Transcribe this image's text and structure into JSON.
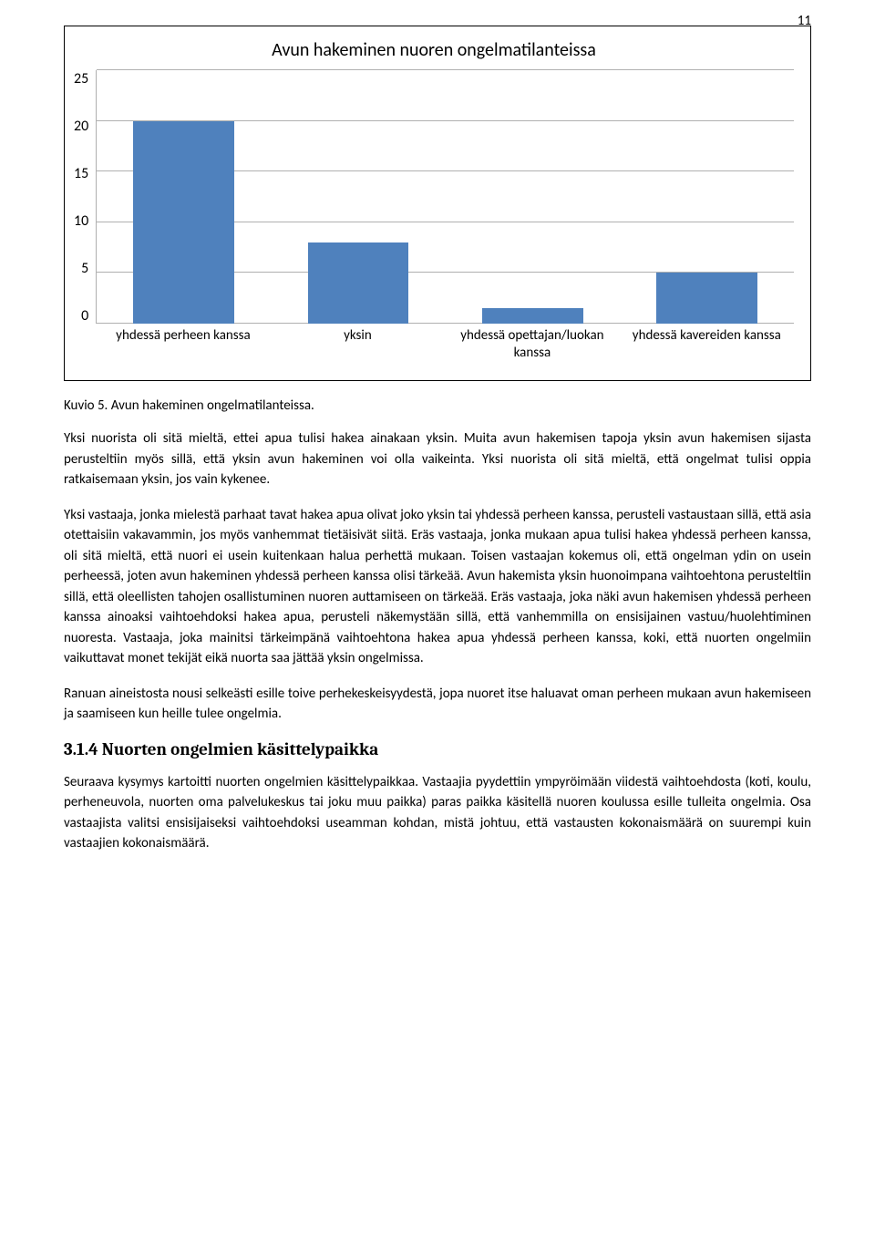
{
  "page_number": "11",
  "chart": {
    "type": "bar",
    "title": "Avun hakeminen nuoren ongelmatilanteissa",
    "yticks": [
      "25",
      "20",
      "15",
      "10",
      "5",
      "0"
    ],
    "ymax": 25,
    "categories": [
      "yhdessä perheen kanssa",
      "yksin",
      "yhdessä opettajan/luokan kanssa",
      "yhdessä kavereiden kanssa"
    ],
    "values": [
      20,
      8,
      1.5,
      5
    ],
    "bar_color": "#4f81bd",
    "grid_color": "#b0b0b0",
    "background_color": "#ffffff"
  },
  "caption": "Kuvio 5. Avun hakeminen ongelmatilanteissa.",
  "para1": "Yksi nuorista oli sitä mieltä, ettei apua tulisi hakea ainakaan yksin. Muita avun hakemisen tapoja yksin avun hakemisen sijasta perusteltiin myös sillä, että yksin avun hakeminen voi olla vaikeinta. Yksi nuorista oli sitä mieltä, että ongelmat tulisi oppia ratkaisemaan yksin, jos vain kykenee.",
  "para2": "Yksi vastaaja, jonka mielestä parhaat tavat hakea apua olivat joko yksin tai yhdessä perheen kanssa, perusteli vastaustaan sillä, että asia otettaisiin vakavammin, jos myös vanhemmat tietäisivät siitä. Eräs vastaaja, jonka mukaan apua tulisi hakea yhdessä perheen kanssa, oli sitä mieltä, että nuori ei usein kuitenkaan halua perhettä mukaan. Toisen vastaajan kokemus oli, että ongelman ydin on usein perheessä, joten avun hakeminen yhdessä perheen kanssa olisi tärkeää. Avun hakemista yksin huonoimpana vaihtoehtona perusteltiin sillä, että oleellisten tahojen osallistuminen nuoren auttamiseen on tärkeää. Eräs vastaaja, joka näki avun hakemisen yhdessä perheen kanssa ainoaksi vaihtoehdoksi hakea apua, perusteli näkemystään sillä, että vanhemmilla on ensisijainen vastuu/huolehtiminen nuoresta. Vastaaja, joka mainitsi tärkeimpänä vaihtoehtona hakea apua yhdessä perheen kanssa, koki, että nuorten ongelmiin vaikuttavat monet tekijät eikä nuorta saa jättää yksin ongelmissa.",
  "para3": "Ranuan aineistosta nousi selkeästi esille toive perhekeskeisyydestä, jopa nuoret itse haluavat oman perheen mukaan avun hakemiseen ja saamiseen kun heille tulee ongelmia.",
  "heading": "3.1.4 Nuorten ongelmien käsittelypaikka",
  "para4": "Seuraava kysymys kartoitti nuorten ongelmien käsittelypaikkaa. Vastaajia pyydettiin ympyröimään viidestä vaihtoehdosta (koti, koulu, perheneuvola, nuorten oma palvelukeskus tai joku muu paikka) paras paikka käsitellä nuoren koulussa esille tulleita ongelmia. Osa vastaajista valitsi ensisijaiseksi vaihtoehdoksi useamman kohdan, mistä johtuu, että vastausten kokonaismäärä on suurempi kuin vastaajien kokonaismäärä."
}
